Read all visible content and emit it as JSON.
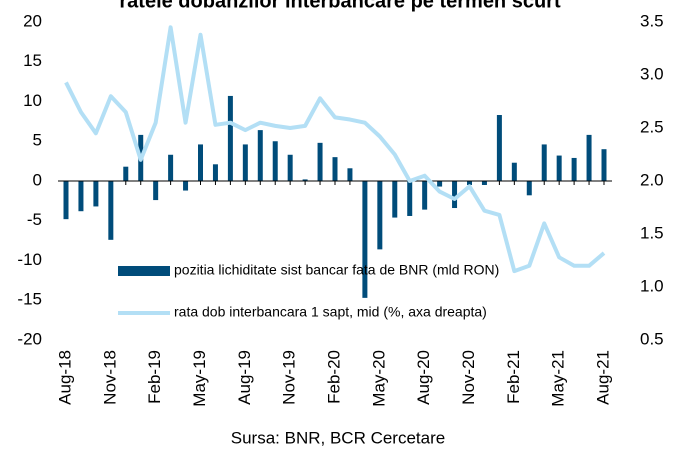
{
  "chart_data": {
    "type": "bar_line",
    "title": "ratele dobanzilor interbancare pe termen scurt",
    "source": "Sursa: BNR, BCR Cercetare",
    "categories": [
      "Aug-18",
      null,
      null,
      "Nov-18",
      null,
      null,
      "Feb-19",
      null,
      null,
      "May-19",
      null,
      null,
      "Aug-19",
      null,
      null,
      "Nov-19",
      null,
      null,
      "Feb-20",
      null,
      null,
      "May-20",
      null,
      null,
      "Aug-20",
      null,
      null,
      "Nov-20",
      null,
      null,
      "Feb-21",
      null,
      null,
      "May-21",
      null,
      null,
      "Aug-21"
    ],
    "series": [
      {
        "name": "pozitia lichiditate sist bancar fata de BNR (mld RON)",
        "color": "#004c7a",
        "type": "bar",
        "values": [
          -4.8,
          -3.8,
          -3.2,
          -7.4,
          1.8,
          5.8,
          -2.4,
          3.3,
          -1.2,
          4.6,
          2.1,
          10.7,
          4.6,
          6.4,
          5.0,
          3.3,
          0.2,
          4.8,
          3.0,
          1.6,
          -14.7,
          -8.6,
          -4.6,
          -4.4,
          -3.6,
          -0.7,
          -3.4,
          -0.5,
          -0.5,
          8.3,
          2.3,
          -1.8,
          4.6,
          3.2,
          2.9,
          5.8,
          4.0
        ]
      },
      {
        "name": "rata dob interbancara 1 sapt, mid (%, axa dreapta)",
        "color": "#b3dff5",
        "type": "line",
        "axis": "y2",
        "values": [
          2.93,
          2.65,
          2.45,
          2.8,
          2.65,
          2.2,
          2.55,
          3.45,
          2.55,
          3.38,
          2.53,
          2.55,
          2.48,
          2.55,
          2.52,
          2.5,
          2.52,
          2.78,
          2.6,
          2.58,
          2.55,
          2.42,
          2.25,
          2.0,
          2.05,
          1.9,
          1.83,
          1.95,
          1.72,
          1.68,
          1.15,
          1.2,
          1.6,
          1.28,
          1.2,
          1.2,
          1.32
        ]
      }
    ],
    "ylim": [
      -20,
      20
    ],
    "yticks": [
      20,
      15,
      10,
      5,
      0,
      -5,
      -10,
      -15,
      -20
    ],
    "y2lim": [
      0.5,
      3.5
    ],
    "y2ticks": [
      3.5,
      {
        "value": 3,
        "label": "3.0"
      },
      2.5,
      {
        "value": 2,
        "label": "2.0"
      },
      1.5,
      {
        "value": 1,
        "label": "1.0"
      },
      0.5
    ]
  }
}
